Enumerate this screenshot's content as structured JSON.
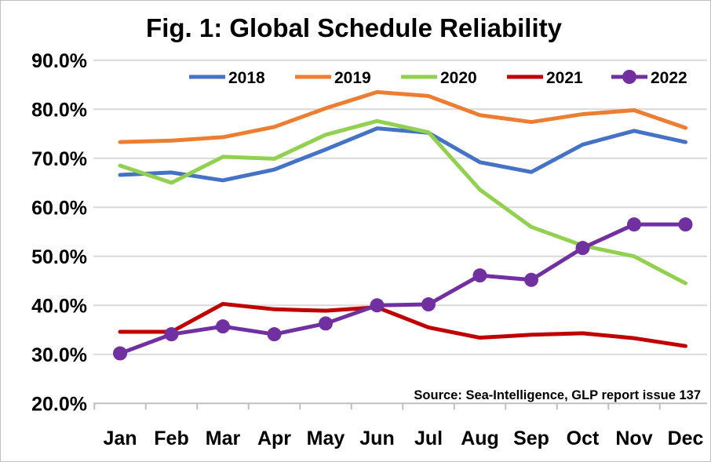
{
  "chart_data": {
    "type": "line",
    "title": "Fig. 1: Global Schedule Reliability",
    "xlabel": "",
    "ylabel": "",
    "ylim": [
      20,
      90
    ],
    "yticks": [
      "20.0%",
      "30.0%",
      "40.0%",
      "50.0%",
      "60.0%",
      "70.0%",
      "80.0%",
      "90.0%"
    ],
    "ytick_values": [
      20,
      30,
      40,
      50,
      60,
      70,
      80,
      90
    ],
    "categories": [
      "Jan",
      "Feb",
      "Mar",
      "Apr",
      "May",
      "Jun",
      "Jul",
      "Aug",
      "Sep",
      "Oct",
      "Nov",
      "Dec"
    ],
    "grid": true,
    "legend_position": "top",
    "annotation": "Source: Sea-Intelligence, GLP report issue 137",
    "series": [
      {
        "name": "2018",
        "color": "#4472C4",
        "markers": false,
        "values": [
          66.6,
          67.1,
          65.5,
          67.7,
          71.8,
          76.1,
          75.2,
          69.2,
          67.2,
          72.8,
          75.6,
          73.3
        ]
      },
      {
        "name": "2019",
        "color": "#ED7D31",
        "markers": false,
        "values": [
          73.3,
          73.6,
          74.3,
          76.4,
          80.2,
          83.5,
          82.7,
          78.8,
          77.4,
          79.0,
          79.8,
          76.2
        ]
      },
      {
        "name": "2020",
        "color": "#92D050",
        "markers": false,
        "values": [
          68.5,
          65.0,
          70.3,
          69.9,
          74.8,
          77.6,
          75.3,
          63.6,
          56.0,
          52.2,
          50.0,
          44.5
        ]
      },
      {
        "name": "2021",
        "color": "#C00000",
        "markers": false,
        "values": [
          34.6,
          34.6,
          40.3,
          39.2,
          38.9,
          39.6,
          35.5,
          33.4,
          34.0,
          34.3,
          33.3,
          31.7
        ]
      },
      {
        "name": "2022",
        "color": "#7030A0",
        "markers": true,
        "values": [
          30.2,
          34.1,
          35.7,
          34.1,
          36.3,
          40.0,
          40.2,
          46.1,
          45.2,
          51.7,
          56.5,
          56.5
        ]
      }
    ]
  }
}
